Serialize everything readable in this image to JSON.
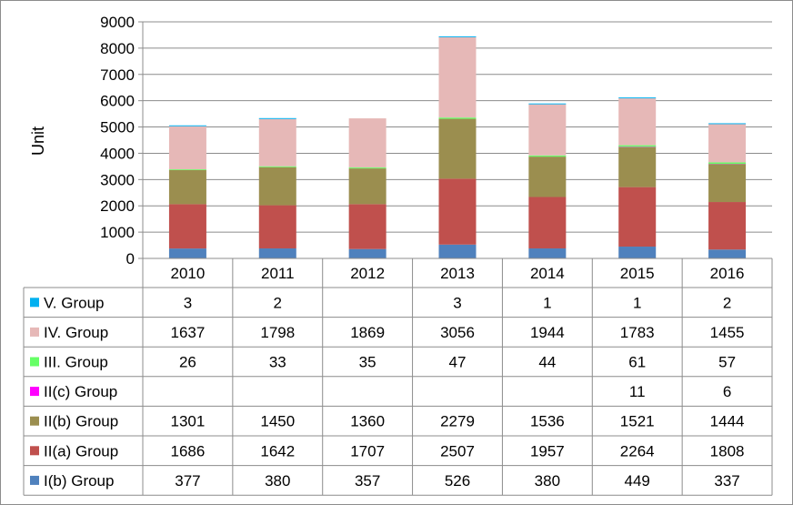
{
  "chart_data": {
    "type": "bar",
    "stacked": true,
    "ylabel": "Unit",
    "ylim": [
      0,
      9000
    ],
    "yticks": [
      0,
      1000,
      2000,
      3000,
      4000,
      5000,
      6000,
      7000,
      8000,
      9000
    ],
    "grid": true,
    "legend_placement": "data table below chart",
    "categories": [
      "2010",
      "2011",
      "2012",
      "2013",
      "2014",
      "2015",
      "2016"
    ],
    "series": [
      {
        "name": "I(b) Group",
        "color": "#4f81bd",
        "values": [
          377,
          380,
          357,
          526,
          380,
          449,
          337
        ]
      },
      {
        "name": "II(a) Group",
        "color": "#c0504d",
        "values": [
          1686,
          1642,
          1707,
          2507,
          1957,
          2264,
          1808
        ]
      },
      {
        "name": "II(b) Group",
        "color": "#9b8e4f",
        "values": [
          1301,
          1450,
          1360,
          2279,
          1536,
          1521,
          1444
        ]
      },
      {
        "name": "II(c) Group",
        "color": "#ff00ff",
        "values": [
          null,
          null,
          null,
          null,
          null,
          11,
          6
        ]
      },
      {
        "name": "III. Group",
        "color": "#66ff66",
        "values": [
          26,
          33,
          35,
          47,
          44,
          61,
          57
        ]
      },
      {
        "name": "IV. Group",
        "color": "#e6b8b7",
        "values": [
          1637,
          1798,
          1869,
          3056,
          1944,
          1783,
          1455
        ]
      },
      {
        "name": "V. Group",
        "color": "#00b0f0",
        "values": [
          3,
          2,
          null,
          3,
          1,
          1,
          2
        ]
      }
    ]
  }
}
